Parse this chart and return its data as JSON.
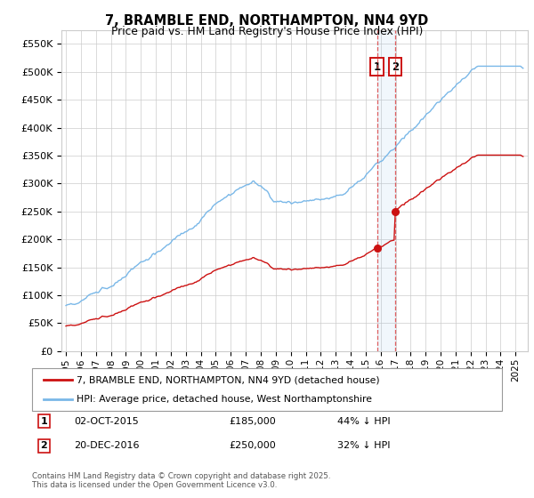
{
  "title": "7, BRAMBLE END, NORTHAMPTON, NN4 9YD",
  "subtitle": "Price paid vs. HM Land Registry's House Price Index (HPI)",
  "yticks": [
    0,
    50000,
    100000,
    150000,
    200000,
    250000,
    300000,
    350000,
    400000,
    450000,
    500000,
    550000
  ],
  "ytick_labels": [
    "£0",
    "£50K",
    "£100K",
    "£150K",
    "£200K",
    "£250K",
    "£300K",
    "£350K",
    "£400K",
    "£450K",
    "£500K",
    "£550K"
  ],
  "ylim": [
    0,
    575000
  ],
  "xlim_start": 1994.7,
  "xlim_end": 2025.8,
  "xticks": [
    1995,
    1996,
    1997,
    1998,
    1999,
    2000,
    2001,
    2002,
    2003,
    2004,
    2005,
    2006,
    2007,
    2008,
    2009,
    2010,
    2011,
    2012,
    2013,
    2014,
    2015,
    2016,
    2017,
    2018,
    2019,
    2020,
    2021,
    2022,
    2023,
    2024,
    2025
  ],
  "hpi_color": "#7ab8e8",
  "price_color": "#cc1111",
  "marker1_date": 2015.75,
  "marker2_date": 2016.97,
  "sale1_price": 185000,
  "sale2_price": 250000,
  "vline_color": "#dd4444",
  "legend1_label": "7, BRAMBLE END, NORTHAMPTON, NN4 9YD (detached house)",
  "legend2_label": "HPI: Average price, detached house, West Northamptonshire",
  "background_color": "#ffffff",
  "grid_color": "#cccccc",
  "footnote": "Contains HM Land Registry data © Crown copyright and database right 2025.\nThis data is licensed under the Open Government Licence v3.0."
}
